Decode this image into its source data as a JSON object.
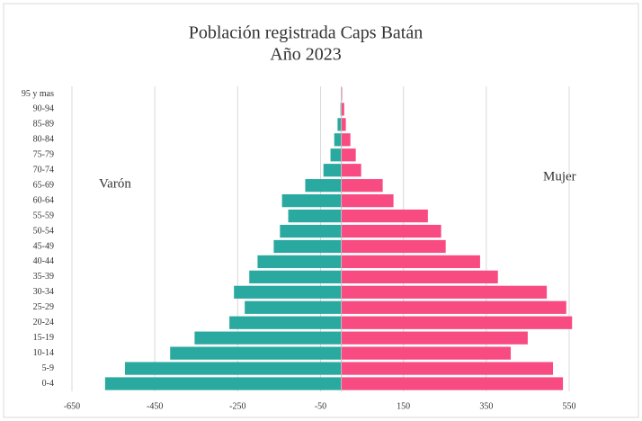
{
  "chart_data": {
    "type": "bar",
    "orientation": "horizontal",
    "stacked": false,
    "title": "Población registrada Caps Batán",
    "subtitle": "Año 2023",
    "categories": [
      "0-4",
      "5-9",
      "10-14",
      "15-19",
      "20-24",
      "25-29",
      "30-34",
      "35-39",
      "40-44",
      "45-49",
      "50-54",
      "55-59",
      "60-64",
      "65-69",
      "70-74",
      "75-79",
      "80-84",
      "85-89",
      "90-94",
      "95 y mas"
    ],
    "series": [
      {
        "name": "Varón",
        "color": "#2aa9a0",
        "values": [
          -570,
          -522,
          -413,
          -354,
          -270,
          -233,
          -259,
          -222,
          -202,
          -163,
          -148,
          -128,
          -143,
          -87,
          -43,
          -26,
          -17,
          -9,
          -2,
          0
        ]
      },
      {
        "name": "Mujer",
        "color": "#f74b82",
        "values": [
          535,
          511,
          409,
          450,
          557,
          543,
          496,
          378,
          335,
          252,
          241,
          209,
          126,
          100,
          48,
          35,
          22,
          11,
          7,
          2
        ]
      }
    ],
    "xlim": [
      -650,
      550
    ],
    "xticks": [
      -650,
      -450,
      -250,
      -50,
      150,
      350,
      550
    ],
    "grid": true
  }
}
